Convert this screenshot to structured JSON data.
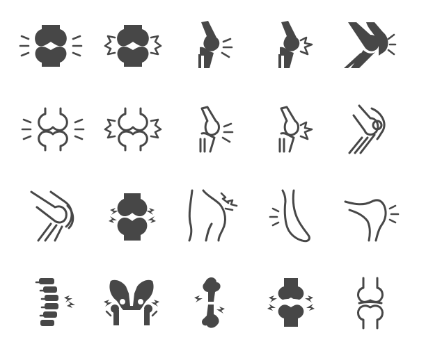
{
  "colors": {
    "icon": "#474747",
    "background": "#ffffff"
  },
  "icons": [
    "knee-joint-solid-icon",
    "knee-joint-pain-solid-icon",
    "elbow-joint-solid-icon",
    "elbow-joint-pain-solid-icon",
    "knee-side-solid-icon",
    "knee-joint-outline-icon",
    "knee-joint-pain-outline-icon",
    "elbow-joint-outline-icon",
    "elbow-joint-pain-outline-icon",
    "knee-side-outline-icon",
    "knee-bent-outline-icon",
    "joint-inflammation-solid-icon",
    "hip-pain-outline-icon",
    "foot-ankle-outline-icon",
    "knee-pain-outline-icon",
    "spine-pain-solid-icon",
    "pelvis-pain-solid-icon",
    "broken-bone-solid-icon",
    "joint-pain-solid-icon",
    "knee-joint-simple-outline-icon"
  ]
}
